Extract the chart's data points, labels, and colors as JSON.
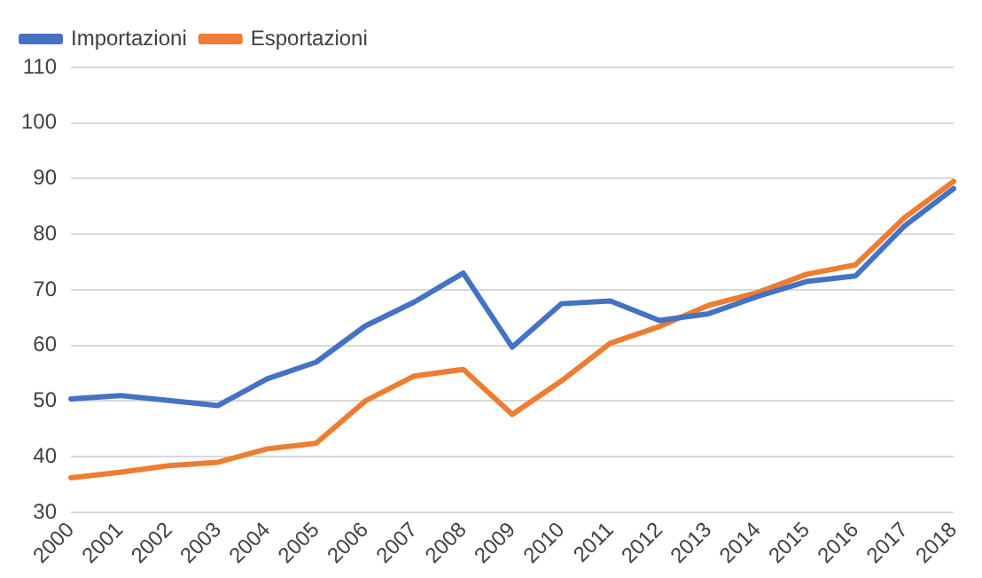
{
  "chart_data": {
    "type": "line",
    "categories": [
      "2000",
      "2001",
      "2002",
      "2003",
      "2004",
      "2005",
      "2006",
      "2007",
      "2008",
      "2009",
      "2010",
      "2011",
      "2012",
      "2013",
      "2014",
      "2015",
      "2016",
      "2017",
      "2018"
    ],
    "series": [
      {
        "name": "Importazioni",
        "color": "#4472c4",
        "values": [
          50.4,
          51,
          50.1,
          49.2,
          54,
          57,
          63.5,
          67.8,
          73,
          59.7,
          67.5,
          68,
          64.5,
          65.7,
          68.8,
          71.5,
          72.5,
          81.5,
          88.2
        ]
      },
      {
        "name": "Esportazioni",
        "color": "#ed7d31",
        "values": [
          36.2,
          37.2,
          38.4,
          39,
          41.4,
          42.4,
          50,
          54.5,
          55.7,
          47.6,
          53.6,
          60.4,
          63.4,
          67.2,
          69.5,
          72.8,
          74.5,
          83,
          89.5
        ]
      }
    ],
    "ylim": [
      30,
      110
    ],
    "yticks": [
      30,
      40,
      50,
      60,
      70,
      80,
      90,
      100,
      110
    ],
    "grid": "y",
    "legend": "top left",
    "marker": "none",
    "line_style": "solid"
  }
}
